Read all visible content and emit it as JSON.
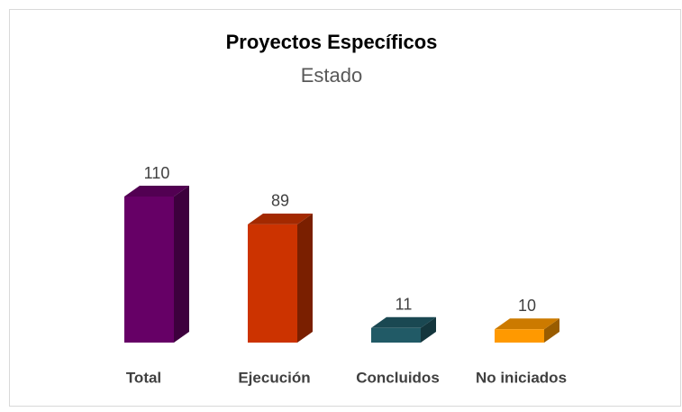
{
  "chart_data": {
    "type": "bar3d",
    "title": "Proyectos Específicos",
    "subtitle": "Estado",
    "categories": [
      "Total",
      "Ejecución",
      "Concluidos",
      "No iniciados"
    ],
    "values": [
      110,
      89,
      11,
      10
    ],
    "colors": [
      "#660066",
      "#cc3300",
      "#215a66",
      "#ff9900"
    ]
  }
}
